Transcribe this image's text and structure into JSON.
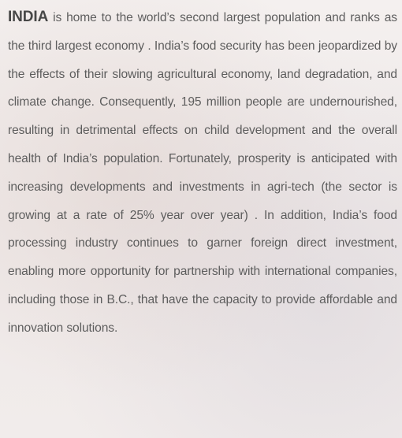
{
  "paragraph": {
    "lead": "INDIA",
    "text": " is home to the world’s second largest population and ranks as the third largest economy . India’s food security has been jeopardized by the effects of their slowing agricultural economy, land degradation, and climate change. Consequently, 195 million people are undernourished, resulting in detrimental effects on child development and the overall health of India’s population. Fortunately, prosperity is anticipated with increasing developments and investments in agri-tech (the sector is growing at a rate of 25% year over year) . In addition, India’s food processing industry continues to garner foreign direct investment, enabling more opportunity for partnership with international companies, including those in B.C., that have the capacity to provide affordable and innovation solutions."
  }
}
